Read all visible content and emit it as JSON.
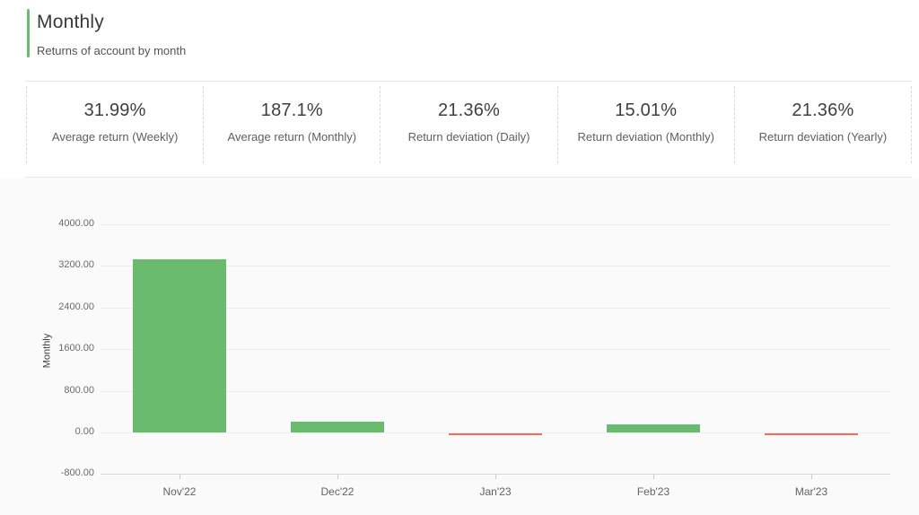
{
  "header": {
    "title": "Monthly",
    "subtitle": "Returns of account by month"
  },
  "stats": {
    "items": [
      {
        "value": "31.99%",
        "label": "Average return (Weekly)"
      },
      {
        "value": "187.1%",
        "label": "Average return (Monthly)"
      },
      {
        "value": "21.36%",
        "label": "Return deviation (Daily)"
      },
      {
        "value": "15.01%",
        "label": "Return deviation (Monthly)"
      },
      {
        "value": "21.36%",
        "label": "Return deviation (Yearly)"
      }
    ]
  },
  "chart_data": {
    "type": "bar",
    "categories": [
      "Nov'22",
      "Dec'22",
      "Jan'23",
      "Feb'23",
      "Mar'23"
    ],
    "values": [
      3330,
      215,
      -35,
      155,
      -40
    ],
    "title": "",
    "xlabel": "",
    "ylabel": "Monthly",
    "ylim": [
      -800,
      4000
    ],
    "yticks": [
      4000,
      3200,
      2400,
      1600,
      800,
      0,
      -800
    ],
    "ytick_step": 800,
    "ytick_format": "2-decimals",
    "grid": true,
    "legend": "none",
    "positive_color": "#69bb6e",
    "negative_color": "#f36c5f"
  },
  "colors": {
    "accent_green": "#69bb6e",
    "negative_red": "#f36c5f",
    "section_background": "#fafafa",
    "gridline": "#ececec"
  }
}
